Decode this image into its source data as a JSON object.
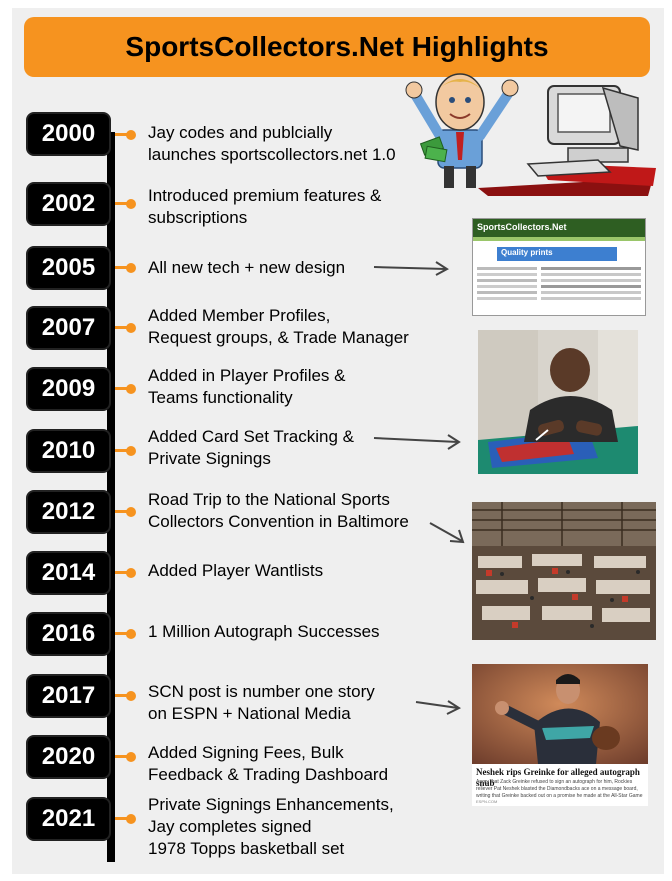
{
  "header": {
    "title": "SportsCollectors.Net Highlights"
  },
  "timeline": [
    {
      "year": "2000",
      "text": "Jay codes and publcially\nlaunches sportscollectors.net 1.0"
    },
    {
      "year": "2002",
      "text": "Introduced premium features &\nsubscriptions"
    },
    {
      "year": "2005",
      "text": "All new tech + new design"
    },
    {
      "year": "2007",
      "text": "Added Member Profiles,\nRequest groups, & Trade Manager"
    },
    {
      "year": "2009",
      "text": "Added in Player Profiles &\nTeams functionality"
    },
    {
      "year": "2010",
      "text": "Added Card Set Tracking &\nPrivate Signings"
    },
    {
      "year": "2012",
      "text": "Road Trip to the National Sports\nCollectors Convention in Baltimore"
    },
    {
      "year": "2014",
      "text": "Added Player Wantlists"
    },
    {
      "year": "2016",
      "text": "1 Million Autograph Successes"
    },
    {
      "year": "2017",
      "text": "SCN post is number one story\non ESPN + National Media"
    },
    {
      "year": "2020",
      "text": "Added Signing Fees, Bulk\nFeedback & Trading Dashboard"
    },
    {
      "year": "2021",
      "text": "Private Signings Enhancements,\nJay completes signed\n1978 Topps basketball set"
    }
  ],
  "images": {
    "website": {
      "logo_text": "SportsCollectors.Net",
      "banner_text": "Quality prints"
    },
    "news": {
      "headline": "Neshek rips Greinke for alleged autograph snub",
      "body": "Angry that Zack Greinke refused to sign an autograph for him, Rockies reliever Pat Neshek blasted the Diamondbacks ace on a message board, writing that Greinke backed out on a promise he made at the All-Star Game",
      "source": "ESPN.COM"
    }
  },
  "colors": {
    "accent": "#f6931f",
    "year_box": "#000000",
    "panel": "#efefef"
  }
}
